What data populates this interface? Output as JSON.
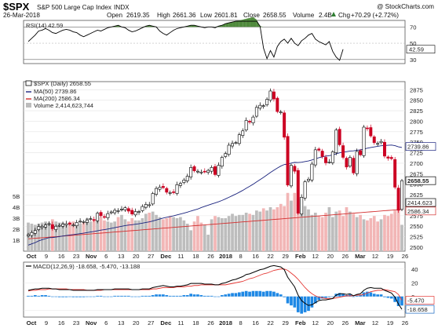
{
  "header": {
    "symbol": "$SPX",
    "name": "S&P 500 Large Cap Index",
    "exchange": "INDX",
    "watermark": "@ StockCharts.com",
    "date": "26-Mar-2018",
    "open_label": "Open",
    "open": "2619.35",
    "high_label": "High",
    "high": "2661.36",
    "low_label": "Low",
    "low": "2601.81",
    "close_label": "Close",
    "close": "2658.55",
    "volume_label": "Volume",
    "volume": "2.4B",
    "chg_label": "Chg",
    "chg": "+70.29 (+2.72%)",
    "chg_icon": "up-triangle-icon"
  },
  "colors": {
    "up_candle": "#ffffff",
    "down_candle": "#cc0022",
    "candle_outline": "#000000",
    "ma50": "#1a237e",
    "ma200": "#d32f2f",
    "rsi_fill": "#4f8a3c",
    "volume_up": "#bdbdbd",
    "volume_down": "#f2b6b6",
    "macd_line": "#000000",
    "signal_line": "#e53935",
    "histogram": "#1e88e5",
    "grid": "#e4e4e4"
  },
  "chart_data": [
    {
      "type": "line",
      "panel": "rsi",
      "label": "RSI(14) 42.59",
      "current": 42.59,
      "ylim": [
        30,
        70
      ],
      "yticks": [
        30,
        50,
        70
      ],
      "ytick_labels": [
        "30",
        "50",
        "70"
      ],
      "overbought": 70,
      "oversold": 30,
      "values": [
        52,
        56,
        60,
        65,
        66,
        68,
        66,
        63,
        62,
        64,
        66,
        67,
        66,
        64,
        63,
        60,
        58,
        60,
        62,
        64,
        66,
        65,
        67,
        69,
        70,
        71,
        72,
        70,
        69,
        66,
        64,
        65,
        67,
        69,
        71,
        72,
        71,
        70,
        65,
        62,
        60,
        63,
        66,
        68,
        69,
        70,
        71,
        72,
        72,
        71,
        70,
        69,
        70,
        70,
        69,
        71,
        72,
        74,
        75,
        76,
        77,
        78,
        79,
        80,
        81,
        82,
        79,
        71,
        44,
        31,
        41,
        33,
        46,
        52,
        55,
        50,
        56,
        50,
        47,
        53,
        56,
        60,
        62,
        55,
        52,
        50,
        48,
        52,
        40,
        33,
        29,
        42.59
      ]
    },
    {
      "type": "candlestick",
      "panel": "price",
      "label": "$SPX (Daily) 2658.55",
      "ylim": [
        2500,
        2885
      ],
      "yticks": [
        2500,
        2525,
        2550,
        2575,
        2600,
        2625,
        2650,
        2675,
        2700,
        2725,
        2750,
        2775,
        2800,
        2825,
        2850,
        2875
      ],
      "xlabels": [
        "Oct",
        "9",
        "16",
        "23",
        "Nov",
        "6",
        "13",
        "20",
        "27",
        "Dec",
        "11",
        "18",
        "26",
        "2018",
        "8",
        "16",
        "22",
        "29",
        "Feb",
        "12",
        "20",
        "26",
        "Mar",
        "12",
        "19",
        "26"
      ],
      "close": [
        2530,
        2535,
        2540,
        2549,
        2550,
        2553,
        2556,
        2544,
        2550,
        2552,
        2555,
        2556,
        2555,
        2553,
        2559,
        2562,
        2561,
        2565,
        2568,
        2565,
        2581,
        2575,
        2572,
        2580,
        2584,
        2588,
        2587,
        2591,
        2594,
        2586,
        2579,
        2585,
        2585,
        2597,
        2602,
        2601,
        2628,
        2640,
        2643,
        2642,
        2631,
        2630,
        2630,
        2649,
        2652,
        2660,
        2669,
        2690,
        2682,
        2681,
        2679,
        2680,
        2683,
        2690,
        2673,
        2695,
        2714,
        2723,
        2743,
        2747,
        2749,
        2768,
        2777,
        2802,
        2798,
        2810,
        2833,
        2838,
        2837,
        2852,
        2872,
        2853,
        2823,
        2822,
        2762,
        2648,
        2695,
        2681,
        2581,
        2619,
        2656,
        2662,
        2698,
        2732,
        2731,
        2716,
        2701,
        2703,
        2727,
        2779,
        2744,
        2714,
        2691,
        2714,
        2677,
        2728,
        2720,
        2786,
        2783,
        2765,
        2749,
        2747,
        2752,
        2717,
        2712,
        2711,
        2643,
        2588,
        2658.55
      ],
      "series": [
        {
          "name": "MA(50)",
          "label": "MA(50) 2739.86",
          "current": 2739.86
        },
        {
          "name": "MA(200)",
          "label": "MA(200) 2586.34",
          "current": 2586.34
        },
        {
          "name": "Volume",
          "label": "Volume 2,414,623,744",
          "current": 2414623744
        }
      ],
      "last_price_tags": [
        "2739.86",
        "2658.55",
        "2586.34",
        "2414.623"
      ]
    },
    {
      "type": "bar",
      "panel": "volume",
      "axis_labels": [
        "1B",
        "2B",
        "3B",
        "4B",
        "5B"
      ],
      "values_billions": [
        2.6,
        2.5,
        2.4,
        2.5,
        2.6,
        2.7,
        2.6,
        2.9,
        2.7,
        2.6,
        2.6,
        2.5,
        2.5,
        2.7,
        2.6,
        2.5,
        2.6,
        3.0,
        2.7,
        2.9,
        3.2,
        3.1,
        2.8,
        2.7,
        2.6,
        2.7,
        3.1,
        3.3,
        2.9,
        2.7,
        3.0,
        2.8,
        2.8,
        3.0,
        3.4,
        3.5,
        3.6,
        3.3,
        3.1,
        2.9,
        3.0,
        3.2,
        3.1,
        3.0,
        3.1,
        2.8,
        2.5,
        1.9,
        2.7,
        3.2,
        2.6,
        2.4,
        1.5,
        2.9,
        3.2,
        3.1,
        3.0,
        3.0,
        3.2,
        3.4,
        3.2,
        3.3,
        3.3,
        3.5,
        3.4,
        3.3,
        3.7,
        3.6,
        3.9,
        3.7,
        4.0,
        3.8,
        4.0,
        4.3,
        4.1,
        5.3,
        4.6,
        5.3,
        4.8,
        4.7,
        4.1,
        3.8,
        3.3,
        3.5,
        3.2,
        3.1,
        3.5,
        4.0,
        3.1,
        3.6,
        3.7,
        3.2,
        4.0,
        3.6,
        3.4,
        3.1,
        3.3,
        2.9,
        2.8,
        3.0,
        3.2,
        2.7,
        2.9,
        3.3,
        3.2,
        3.4,
        3.7,
        4.1,
        2.4
      ]
    },
    {
      "type": "line",
      "panel": "macd",
      "label": "MACD(12,26,9) -18.658, -5.470, -13.188",
      "values_text": [
        "-18.658",
        "-5.470",
        "-13.188"
      ],
      "ylim": [
        -30,
        50
      ],
      "yticks": [
        -20,
        0,
        20,
        40
      ],
      "ytick_labels": [
        "-20",
        "0",
        "20",
        "40"
      ],
      "tags": [
        "-5.470",
        "-18.658"
      ],
      "xlabels": [
        "Oct",
        "9",
        "16",
        "23",
        "Nov",
        "6",
        "13",
        "20",
        "27",
        "Dec",
        "11",
        "18",
        "26",
        "2018",
        "8",
        "16",
        "22",
        "29",
        "Feb",
        "12",
        "20",
        "26",
        "Mar",
        "12",
        "19",
        "26"
      ],
      "macd": [
        9,
        10,
        11,
        11,
        12,
        12,
        12,
        11,
        11,
        10,
        10,
        10,
        10,
        9,
        9,
        9,
        9,
        9,
        9,
        9,
        10,
        10,
        10,
        10,
        10,
        11,
        11,
        11,
        11,
        11,
        10,
        10,
        10,
        11,
        11,
        11,
        13,
        14,
        15,
        16,
        15,
        14,
        14,
        15,
        15,
        16,
        17,
        19,
        19,
        19,
        19,
        18,
        18,
        18,
        17,
        17,
        19,
        20,
        22,
        24,
        25,
        27,
        29,
        32,
        33,
        35,
        37,
        39,
        40,
        42,
        44,
        45,
        44,
        43,
        39,
        28,
        21,
        14,
        2,
        -6,
        -10,
        -13,
        -12,
        -9,
        -6,
        -5,
        -5,
        -4,
        -3,
        2,
        4,
        4,
        3,
        4,
        1,
        3,
        4,
        9,
        12,
        13,
        12,
        12,
        12,
        9,
        7,
        5,
        -1,
        -11,
        -18.658
      ],
      "signal": [
        8,
        9,
        9,
        10,
        10,
        10,
        11,
        11,
        11,
        11,
        11,
        11,
        10,
        10,
        10,
        10,
        10,
        9,
        9,
        9,
        9,
        9,
        10,
        10,
        10,
        10,
        10,
        10,
        10,
        10,
        10,
        10,
        10,
        10,
        10,
        10,
        11,
        11,
        12,
        13,
        13,
        13,
        13,
        14,
        14,
        14,
        15,
        15,
        16,
        16,
        17,
        17,
        17,
        17,
        17,
        17,
        17,
        17,
        18,
        19,
        20,
        21,
        22,
        24,
        26,
        27,
        29,
        31,
        33,
        34,
        36,
        38,
        39,
        40,
        40,
        38,
        34,
        30,
        25,
        19,
        13,
        8,
        4,
        1,
        -1,
        -2,
        -3,
        -3,
        -3,
        -2,
        -1,
        0,
        1,
        1,
        1,
        2,
        2,
        3,
        5,
        7,
        8,
        9,
        9,
        10,
        9,
        8,
        7,
        3,
        -5.47
      ],
      "histogram": [
        1,
        1,
        2,
        1,
        2,
        2,
        1,
        0,
        0,
        -1,
        -1,
        -1,
        0,
        -1,
        -1,
        -1,
        -1,
        0,
        0,
        0,
        1,
        1,
        0,
        0,
        0,
        1,
        1,
        1,
        1,
        1,
        0,
        0,
        0,
        1,
        1,
        1,
        2,
        3,
        3,
        3,
        2,
        1,
        1,
        1,
        1,
        2,
        2,
        4,
        3,
        3,
        2,
        1,
        1,
        1,
        0,
        0,
        2,
        3,
        4,
        5,
        5,
        6,
        7,
        8,
        7,
        8,
        8,
        8,
        7,
        8,
        8,
        7,
        5,
        3,
        -1,
        -10,
        -13,
        -16,
        -23,
        -25,
        -23,
        -21,
        -16,
        -10,
        -5,
        -3,
        -2,
        -1,
        0,
        4,
        5,
        4,
        2,
        3,
        0,
        1,
        2,
        6,
        7,
        6,
        4,
        3,
        3,
        -1,
        -2,
        -3,
        -8,
        -14,
        -13.188
      ]
    }
  ]
}
